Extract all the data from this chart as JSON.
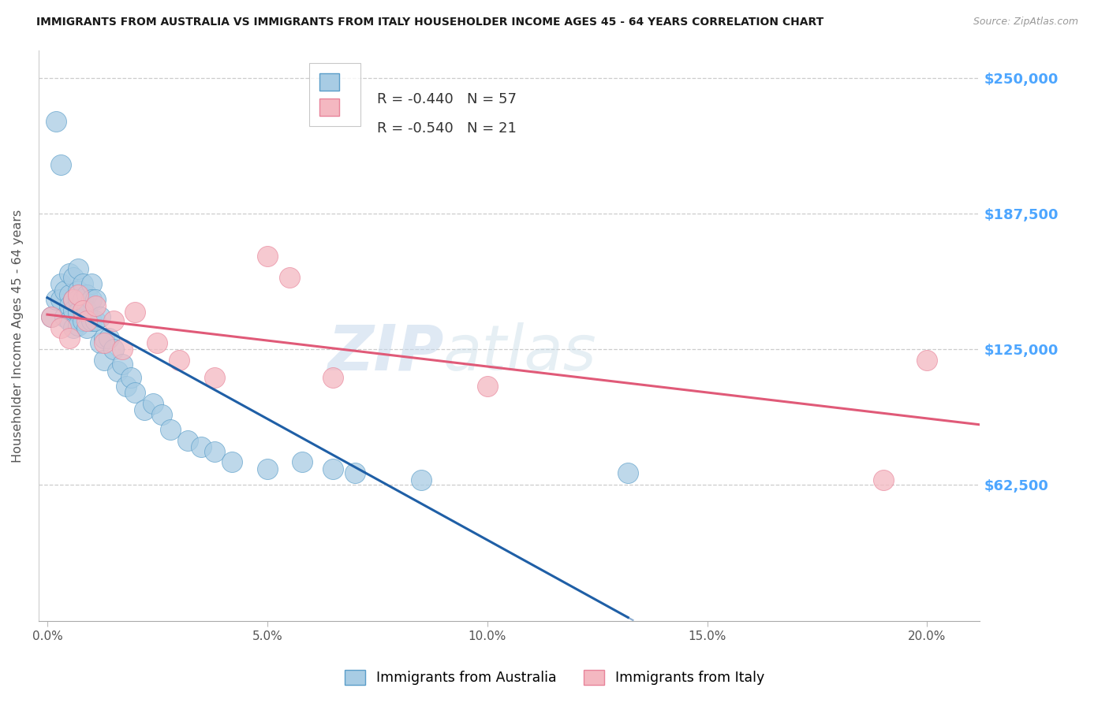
{
  "title": "IMMIGRANTS FROM AUSTRALIA VS IMMIGRANTS FROM ITALY HOUSEHOLDER INCOME AGES 45 - 64 YEARS CORRELATION CHART",
  "source": "Source: ZipAtlas.com",
  "ylabel": "Householder Income Ages 45 - 64 years",
  "xlim_min": -0.002,
  "xlim_max": 0.212,
  "ylim_min": 0,
  "ylim_max": 262500,
  "ytick_vals": [
    62500,
    125000,
    187500,
    250000
  ],
  "ytick_labels": [
    "$62,500",
    "$125,000",
    "$187,500",
    "$250,000"
  ],
  "xtick_vals": [
    0.0,
    0.05,
    0.1,
    0.15,
    0.2
  ],
  "xtick_labels": [
    "0.0%",
    "5.0%",
    "10.0%",
    "15.0%",
    "20.0%"
  ],
  "australia_color": "#a8cce4",
  "australia_edge": "#5b9ec9",
  "italy_color": "#f4b8c1",
  "italy_edge": "#e8849a",
  "australia_line_color": "#1f5fa6",
  "italy_line_color": "#e05a78",
  "australia_R": -0.44,
  "australia_N": 57,
  "italy_R": -0.54,
  "italy_N": 21,
  "watermark_zip": "ZIP",
  "watermark_atlas": "atlas",
  "grid_color": "#cccccc",
  "bg_color": "#ffffff",
  "right_label_color": "#4da6ff",
  "aus_line_solid_end": 0.132,
  "aus_line_dash_end": 0.212,
  "ita_line_start": 0.0,
  "ita_line_end": 0.212,
  "australia_x": [
    0.001,
    0.002,
    0.002,
    0.003,
    0.003,
    0.003,
    0.004,
    0.004,
    0.005,
    0.005,
    0.005,
    0.005,
    0.006,
    0.006,
    0.006,
    0.006,
    0.007,
    0.007,
    0.007,
    0.007,
    0.007,
    0.008,
    0.008,
    0.008,
    0.009,
    0.009,
    0.009,
    0.01,
    0.01,
    0.01,
    0.011,
    0.011,
    0.012,
    0.012,
    0.013,
    0.013,
    0.014,
    0.015,
    0.016,
    0.017,
    0.018,
    0.019,
    0.02,
    0.022,
    0.024,
    0.026,
    0.028,
    0.032,
    0.035,
    0.038,
    0.042,
    0.05,
    0.058,
    0.065,
    0.07,
    0.085,
    0.132
  ],
  "australia_y": [
    140000,
    230000,
    148000,
    210000,
    155000,
    148000,
    152000,
    140000,
    160000,
    150000,
    145000,
    138000,
    158000,
    148000,
    143000,
    135000,
    162000,
    152000,
    148000,
    142000,
    136000,
    155000,
    148000,
    138000,
    150000,
    143000,
    135000,
    155000,
    148000,
    138000,
    148000,
    138000,
    140000,
    128000,
    130000,
    120000,
    130000,
    125000,
    115000,
    118000,
    108000,
    112000,
    105000,
    97000,
    100000,
    95000,
    88000,
    83000,
    80000,
    78000,
    73000,
    70000,
    73000,
    70000,
    68000,
    65000,
    68000
  ],
  "italy_x": [
    0.001,
    0.003,
    0.005,
    0.006,
    0.007,
    0.008,
    0.009,
    0.011,
    0.013,
    0.015,
    0.017,
    0.02,
    0.025,
    0.03,
    0.038,
    0.05,
    0.055,
    0.065,
    0.1,
    0.19,
    0.2
  ],
  "italy_y": [
    140000,
    135000,
    130000,
    148000,
    150000,
    143000,
    138000,
    145000,
    128000,
    138000,
    125000,
    142000,
    128000,
    120000,
    112000,
    168000,
    158000,
    112000,
    108000,
    65000,
    120000
  ]
}
